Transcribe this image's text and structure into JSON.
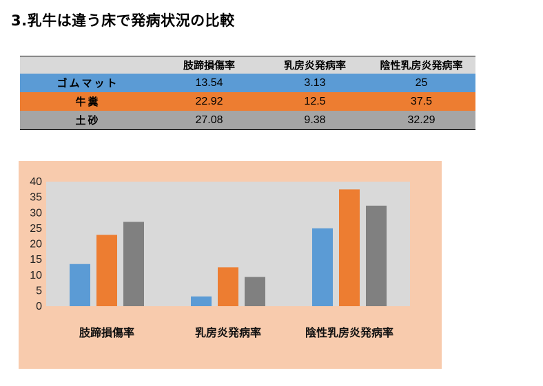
{
  "page_title": "3.乳牛は違う床で発病状況の比較",
  "table": {
    "header": [
      "",
      "肢蹄損傷率",
      "乳房炎発病率",
      "陰性乳房炎発病率"
    ],
    "rows": [
      {
        "label": "ゴムマット",
        "values": [
          "13.54",
          "3.13",
          "25"
        ],
        "color": "#5b9bd5"
      },
      {
        "label": "牛糞",
        "values": [
          "22.92",
          "12.5",
          "37.5"
        ],
        "color": "#ed7d31"
      },
      {
        "label": "土砂",
        "values": [
          "27.08",
          "9.38",
          "32.29"
        ],
        "color": "#a5a5a5"
      }
    ]
  },
  "chart_data": {
    "type": "bar",
    "categories": [
      "肢蹄損傷率",
      "乳房炎発病率",
      "陰性乳房炎発病率"
    ],
    "series": [
      {
        "name": "ゴムマット",
        "values": [
          13.54,
          3.13,
          25
        ],
        "color": "#5b9bd5"
      },
      {
        "name": "牛糞",
        "values": [
          22.92,
          12.5,
          37.5
        ],
        "color": "#ed7d31"
      },
      {
        "name": "土砂",
        "values": [
          27.08,
          9.38,
          32.29
        ],
        "color": "#808080"
      }
    ],
    "yticks": [
      "0",
      "5",
      "10",
      "15",
      "20",
      "25",
      "30",
      "35",
      "40"
    ],
    "ylim": [
      0,
      40
    ],
    "grid": false,
    "legend": "none",
    "plot_background": "#d9d9d9",
    "chart_background": "#f8cbad"
  }
}
